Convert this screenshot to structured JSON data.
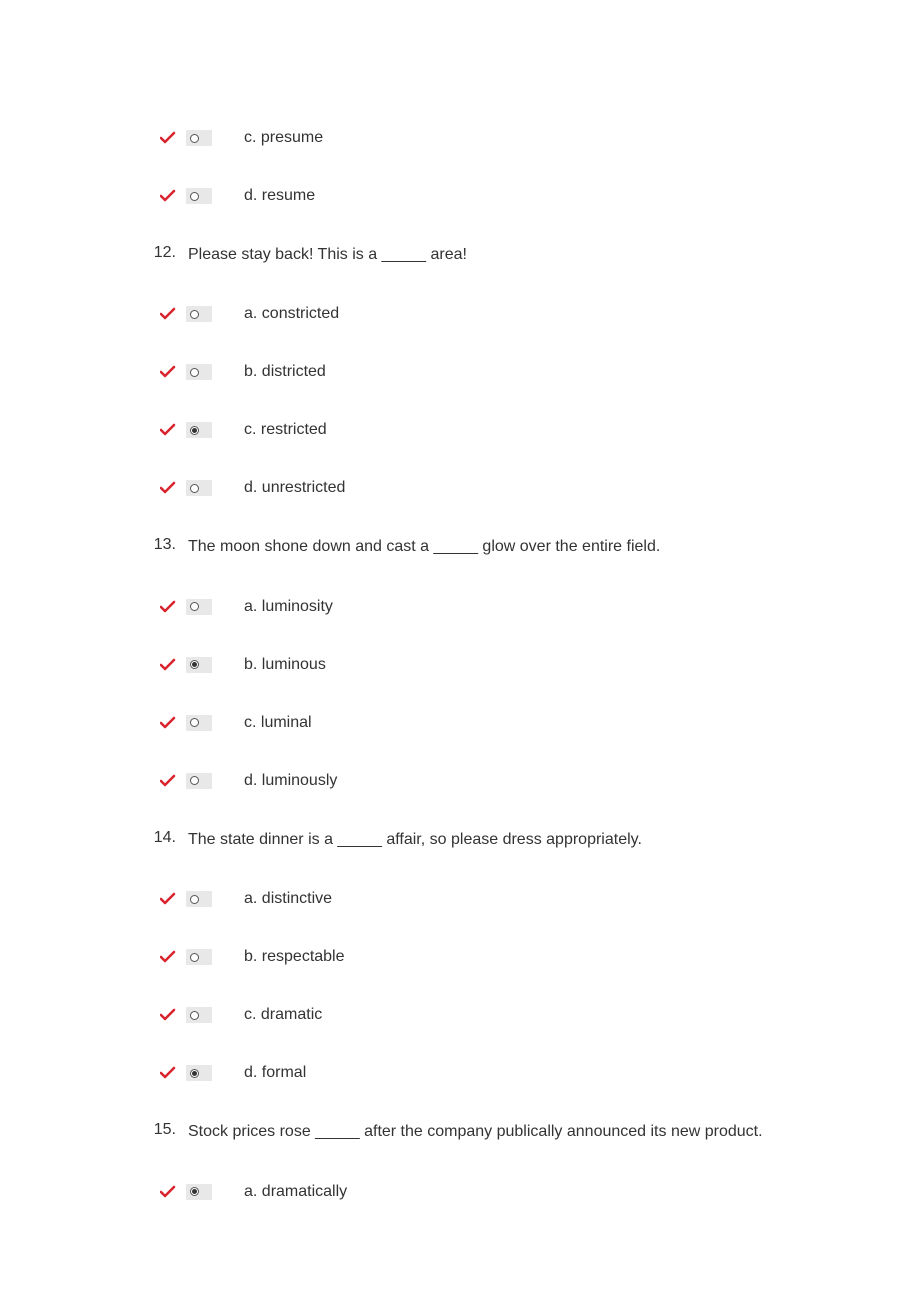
{
  "colors": {
    "background": "#ffffff",
    "text": "#333333",
    "checkmark": "#d9232d",
    "radio_bg": "#e8e8e8",
    "radio_border": "#555555"
  },
  "typography": {
    "font_family": "Arial, Helvetica, sans-serif",
    "font_size": 16
  },
  "items": [
    {
      "type": "option",
      "selected": false,
      "label": "c. presume"
    },
    {
      "type": "option",
      "selected": false,
      "label": "d. resume"
    },
    {
      "type": "question",
      "number": "12.",
      "text": "Please stay back! This is a _____ area!"
    },
    {
      "type": "option",
      "selected": false,
      "label": "a. constricted"
    },
    {
      "type": "option",
      "selected": false,
      "label": "b. districted"
    },
    {
      "type": "option",
      "selected": true,
      "label": "c. restricted"
    },
    {
      "type": "option",
      "selected": false,
      "label": "d. unrestricted"
    },
    {
      "type": "question",
      "number": "13.",
      "text": "The moon shone down and cast a _____ glow over the entire field."
    },
    {
      "type": "option",
      "selected": false,
      "label": "a. luminosity"
    },
    {
      "type": "option",
      "selected": true,
      "label": "b. luminous"
    },
    {
      "type": "option",
      "selected": false,
      "label": "c. luminal"
    },
    {
      "type": "option",
      "selected": false,
      "label": "d. luminously"
    },
    {
      "type": "question",
      "number": "14.",
      "text": "The state dinner is a _____ affair, so please dress appropriately."
    },
    {
      "type": "option",
      "selected": false,
      "label": "a. distinctive"
    },
    {
      "type": "option",
      "selected": false,
      "label": "b. respectable"
    },
    {
      "type": "option",
      "selected": false,
      "label": "c. dramatic"
    },
    {
      "type": "option",
      "selected": true,
      "label": "d. formal"
    },
    {
      "type": "question",
      "number": "15.",
      "text": "Stock prices rose _____ after the company publically announced its new product."
    },
    {
      "type": "option",
      "selected": true,
      "label": "a. dramatically"
    }
  ]
}
